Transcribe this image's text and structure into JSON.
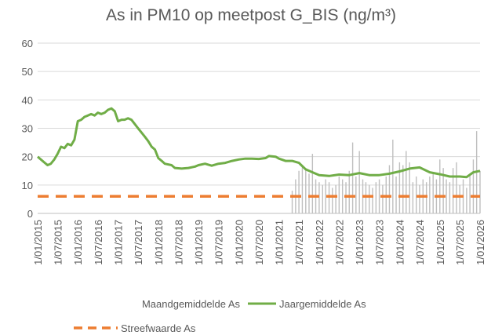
{
  "chart_data": {
    "type": "line",
    "title": "As in PM10 op meetpost G_BIS (ng/m³)",
    "xlabel": "",
    "ylabel": "",
    "ylim": [
      0,
      60
    ],
    "yticks": [
      "0",
      "10",
      "20",
      "30",
      "40",
      "50",
      "60"
    ],
    "xlim": [
      "2015-01-01",
      "2026-01-01"
    ],
    "xticks": [
      "1/01/2015",
      "1/07/2015",
      "1/01/2016",
      "1/07/2016",
      "1/01/2017",
      "1/07/2017",
      "1/01/2018",
      "1/07/2018",
      "1/01/2019",
      "1/07/2019",
      "1/01/2020",
      "1/07/2020",
      "1/01/2021",
      "1/07/2021",
      "1/01/2022",
      "1/07/2022",
      "1/01/2023",
      "1/07/2023",
      "1/01/2024",
      "1/07/2024",
      "1/01/2025",
      "1/07/2025",
      "1/01/2026"
    ],
    "grid": "horizontal",
    "legend_position": "bottom",
    "series": [
      {
        "name": "Maandgemiddelde As",
        "kind": "bar",
        "color": "#bfbfbf",
        "points": [
          [
            "2021-05-01",
            8
          ],
          [
            "2021-06-01",
            12
          ],
          [
            "2021-07-01",
            15
          ],
          [
            "2021-08-01",
            17
          ],
          [
            "2021-09-01",
            16
          ],
          [
            "2021-10-01",
            14
          ],
          [
            "2021-11-01",
            21
          ],
          [
            "2021-12-01",
            12
          ],
          [
            "2022-01-01",
            11
          ],
          [
            "2022-02-01",
            10
          ],
          [
            "2022-03-01",
            12
          ],
          [
            "2022-04-01",
            11
          ],
          [
            "2022-05-01",
            9
          ],
          [
            "2022-06-01",
            10
          ],
          [
            "2022-07-01",
            13
          ],
          [
            "2022-08-01",
            12
          ],
          [
            "2022-09-01",
            11
          ],
          [
            "2022-10-01",
            15
          ],
          [
            "2022-11-01",
            25
          ],
          [
            "2022-12-01",
            13
          ],
          [
            "2023-01-01",
            22
          ],
          [
            "2023-02-01",
            12
          ],
          [
            "2023-03-01",
            11
          ],
          [
            "2023-04-01",
            10
          ],
          [
            "2023-05-01",
            9
          ],
          [
            "2023-06-01",
            11
          ],
          [
            "2023-07-01",
            12
          ],
          [
            "2023-08-01",
            10
          ],
          [
            "2023-09-01",
            13
          ],
          [
            "2023-10-01",
            17
          ],
          [
            "2023-11-01",
            26
          ],
          [
            "2023-12-01",
            13
          ],
          [
            "2024-01-01",
            18
          ],
          [
            "2024-02-01",
            17
          ],
          [
            "2024-03-01",
            22
          ],
          [
            "2024-04-01",
            18
          ],
          [
            "2024-05-01",
            11
          ],
          [
            "2024-06-01",
            13
          ],
          [
            "2024-07-01",
            10
          ],
          [
            "2024-08-01",
            12
          ],
          [
            "2024-09-01",
            11
          ],
          [
            "2024-10-01",
            13
          ],
          [
            "2024-11-01",
            14
          ],
          [
            "2024-12-01",
            12
          ],
          [
            "2025-01-01",
            19
          ],
          [
            "2025-02-01",
            16
          ],
          [
            "2025-03-01",
            12
          ],
          [
            "2025-04-01",
            11
          ],
          [
            "2025-05-01",
            16
          ],
          [
            "2025-06-01",
            18
          ],
          [
            "2025-07-01",
            10
          ],
          [
            "2025-08-01",
            12
          ],
          [
            "2025-09-01",
            9
          ],
          [
            "2025-10-01",
            14
          ],
          [
            "2025-11-01",
            19
          ],
          [
            "2025-12-01",
            29
          ],
          [
            "2026-01-01",
            15
          ]
        ]
      },
      {
        "name": "Jaargemiddelde As",
        "kind": "line",
        "color": "#70ad47",
        "points": [
          [
            "2015-01-01",
            20
          ],
          [
            "2015-03-01",
            18
          ],
          [
            "2015-04-01",
            17
          ],
          [
            "2015-05-01",
            17.5
          ],
          [
            "2015-06-01",
            19
          ],
          [
            "2015-07-01",
            21
          ],
          [
            "2015-08-01",
            23.5
          ],
          [
            "2015-09-01",
            23
          ],
          [
            "2015-10-01",
            24.5
          ],
          [
            "2015-11-01",
            24
          ],
          [
            "2015-12-01",
            26
          ],
          [
            "2016-01-01",
            32.5
          ],
          [
            "2016-02-01",
            33
          ],
          [
            "2016-03-01",
            34
          ],
          [
            "2016-04-01",
            34.5
          ],
          [
            "2016-05-01",
            35
          ],
          [
            "2016-06-01",
            34.5
          ],
          [
            "2016-07-01",
            35.5
          ],
          [
            "2016-08-01",
            35
          ],
          [
            "2016-09-01",
            35.5
          ],
          [
            "2016-10-01",
            36.5
          ],
          [
            "2016-11-01",
            37
          ],
          [
            "2016-12-01",
            36
          ],
          [
            "2017-01-01",
            32.5
          ],
          [
            "2017-02-01",
            33
          ],
          [
            "2017-03-01",
            33
          ],
          [
            "2017-04-01",
            33.5
          ],
          [
            "2017-05-01",
            33
          ],
          [
            "2017-06-01",
            31.5
          ],
          [
            "2017-07-01",
            30
          ],
          [
            "2017-08-01",
            28.5
          ],
          [
            "2017-09-01",
            27
          ],
          [
            "2017-10-01",
            25.5
          ],
          [
            "2017-11-01",
            23.5
          ],
          [
            "2017-12-01",
            22.5
          ],
          [
            "2018-01-01",
            19.5
          ],
          [
            "2018-02-01",
            18.5
          ],
          [
            "2018-03-01",
            17.5
          ],
          [
            "2018-05-01",
            17
          ],
          [
            "2018-06-01",
            16
          ],
          [
            "2018-08-01",
            15.8
          ],
          [
            "2018-10-01",
            16
          ],
          [
            "2018-12-01",
            16.5
          ],
          [
            "2019-01-01",
            17
          ],
          [
            "2019-03-01",
            17.5
          ],
          [
            "2019-05-01",
            16.8
          ],
          [
            "2019-07-01",
            17.5
          ],
          [
            "2019-09-01",
            17.8
          ],
          [
            "2019-11-01",
            18.5
          ],
          [
            "2020-01-01",
            19
          ],
          [
            "2020-03-01",
            19.3
          ],
          [
            "2020-05-01",
            19.3
          ],
          [
            "2020-07-01",
            19.2
          ],
          [
            "2020-09-01",
            19.5
          ],
          [
            "2020-10-01",
            20.2
          ],
          [
            "2020-12-01",
            20
          ],
          [
            "2021-01-01",
            19.3
          ],
          [
            "2021-03-01",
            18.5
          ],
          [
            "2021-05-01",
            18.5
          ],
          [
            "2021-07-01",
            17.8
          ],
          [
            "2021-09-01",
            15.5
          ],
          [
            "2021-11-01",
            14.5
          ],
          [
            "2022-01-01",
            13.5
          ],
          [
            "2022-04-01",
            13.2
          ],
          [
            "2022-07-01",
            13.7
          ],
          [
            "2022-10-01",
            13.5
          ],
          [
            "2023-01-01",
            14.2
          ],
          [
            "2023-04-01",
            13.5
          ],
          [
            "2023-07-01",
            13.5
          ],
          [
            "2023-10-01",
            14
          ],
          [
            "2024-01-01",
            14.8
          ],
          [
            "2024-04-01",
            15.8
          ],
          [
            "2024-07-01",
            16.2
          ],
          [
            "2024-10-01",
            14.5
          ],
          [
            "2025-01-01",
            13.8
          ],
          [
            "2025-04-01",
            13
          ],
          [
            "2025-07-01",
            13
          ],
          [
            "2025-09-01",
            12.8
          ],
          [
            "2025-11-01",
            14.5
          ],
          [
            "2026-01-01",
            15
          ]
        ]
      },
      {
        "name": "Streefwaarde As",
        "kind": "dashed-line",
        "color": "#ed7d31",
        "points": [
          [
            "2015-01-01",
            6
          ],
          [
            "2026-01-01",
            6
          ]
        ]
      }
    ]
  }
}
